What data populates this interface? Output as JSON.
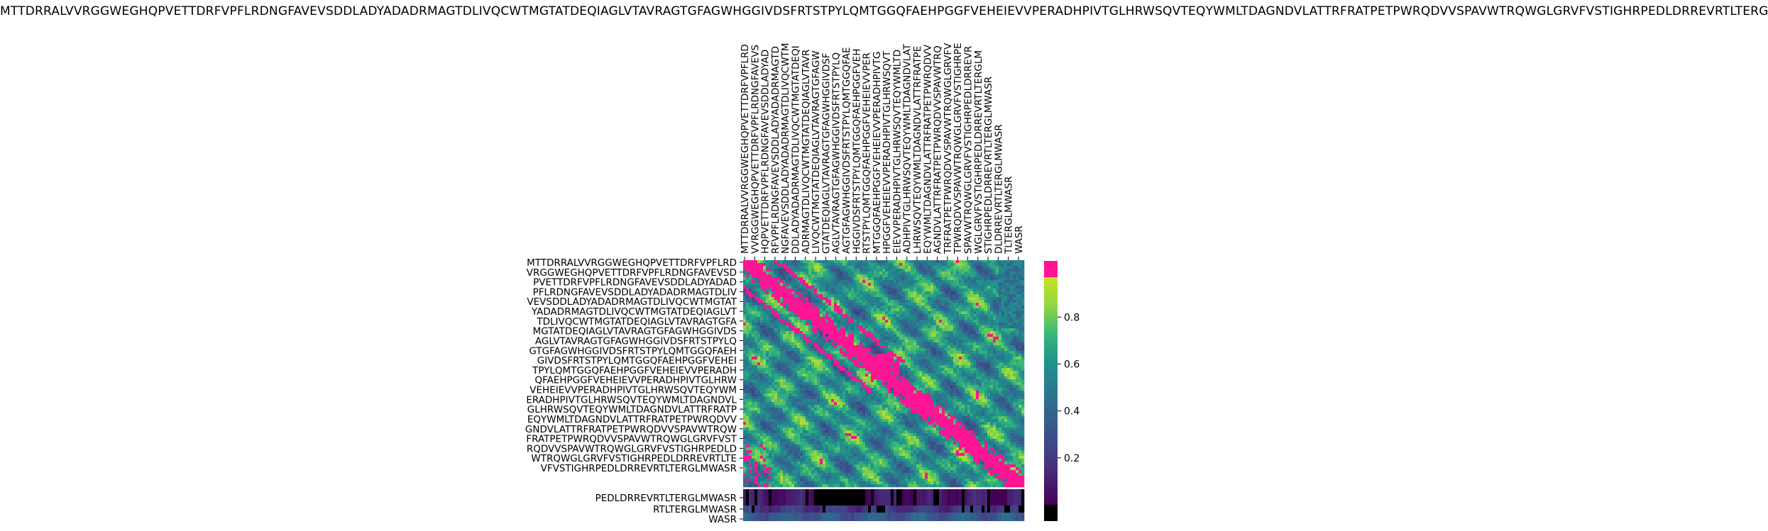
{
  "colors": {
    "self_match": "#ff1493",
    "below_range": "#000000",
    "viridis_low": "#440154",
    "viridis_mid": "#21918c",
    "viridis_high": "#c8e020"
  },
  "chart_data": {
    "type": "heatmap",
    "title": "MTTDRRALVVRGGWEGHQPVETTDRFVPFLRDNGFAVEVSDDLADYADADRMAGTDLIVQCWTMGTATDEQIAGLVTAVRAGTGFAGWHGGIVDSFRTSTPYLQMTGGQFAEHPGGFVEHEIEVVPERADHPIVTGLHRWSQVTEQYWMLTDAGNDVLATTRFRATPETPWRQDVVSPAVWTRQWGLGRVFVSTIGHRPEDLDRREVRTLTERGLMWASR",
    "xlabel": "",
    "ylabel": "",
    "x_tick_labels": [
      "MTTDRRALVVRGGWEGHQPVETTDRFVPFLRD",
      "VVRGGWEGHQPVETTDRFVPFLRDNGFAVEVS",
      "HQPVETTDRFVPFLRDNGFAVEVSDDLADYAD",
      "RFVPFLRDNGFAVEVSDDLADYADADRMAGTD",
      "NGFAVEVSDDLADYADADRMAGTDLIVQCWTM",
      "DDLADYADADRMAGTDLIVQCWTMGTATDEQI",
      "ADRMAGTDLIVQCWTMGTATDEQIAGLVTAVR",
      "LIVQCWTMGTATDEQIAGLVTAVRAGTGFAGW",
      "GTATDEQIAGLVTAVRAGTGFAGWHGGIVDSF",
      "AGLVTAVRAGTGFAGWHGGIVDSFRTSTPYLQ",
      "AGTGFAGWHGGIVDSFRTSTPYLQMTGGQFAE",
      "HGGIVDSFRTSTPYLQMTGGQFAEHPGGFVEH",
      "RTSTPYLQMTGGQFAEHPGGFVEHEIEVVPER",
      "MTGGQFAEHPGGFVEHEIEVVPERADHPIVTG",
      "HPGGFVEHEIEVVPERADHPIVTGLHRWSQVT",
      "EIEVVPERADHPIVTGLHRWSQVTEQYWMLTD",
      "ADHPIVTGLHRWSQVTEQYWMLTDAGNDVLAT",
      "LHRWSQVTEQYWMLTDAGNDVLATTRFRATPE",
      "EQYWMLTDAGNDVLATTRFRATPETPWRQDVV",
      "AGNDVLATTRFRATPETPWRQDVVSPAVWTRQ",
      "TRFRATPETPWRQDVVSPAVWTRQWGLGRVFV",
      "TPWRQDVVSPAVWTRQWGLGRVFVSTIGHRPE",
      "SPAVWTRQWGLGRVFVSTIGHRPEDLDRREVR",
      "WGLGRVFVSTIGHRPEDLDRREVRTLTERGLM",
      "STIGHRPEDLDRREVRTLTERGLMWASR",
      "DLDRREVRTLTERGLMWASR",
      "TLTERGLMWASR",
      "WASR"
    ],
    "y_tick_labels": [
      "MTTDRRALVVRGGWEGHQPVETTDRFVPFLRD",
      "VRGGWEGHQPVETTDRFVPFLRDNGFAVEVSD",
      "PVETTDRFVPFLRDNGFAVEVSDDLADYADAD",
      "PFLRDNGFAVEVSDDLADYADADRMAGTDLIV",
      "VEVSDDLADYADADRMAGTDLIVQCWTMGTAT",
      "YADADRMAGTDLIVQCWTMGTATDEQIAGLVT",
      "TDLIVQCWTMGTATDEQIAGLVTAVRAGTGFA",
      "MGTATDEQIAGLVTAVRAGTGFAGWHGGIVDS",
      "AGLVTAVRAGTGFAGWHGGIVDSFRTSTPYLQ",
      "GTGFAGWHGGIVDSFRTSTPYLQMTGGQFAEH",
      "GIVDSFRTSTPYLQMTGGQFAEHPGGFVEHEI",
      "TPYLQMTGGQFAEHPGGFVEHEIEVVPERADH",
      "QFAEHPGGFVEHEIEVVPERADHPIVTGLHRW",
      "VEHEIEVVPERADHPIVTGLHRWSQVTEQYWM",
      "ERADHPIVTGLHRWSQVTEQYWMLTDAGNDVL",
      "GLHRWSQVTEQYWMLTDAGNDVLATTRFRATP",
      "EQYWMLTDAGNDVLATTRFRATPETPWRQDVV",
      "GNDVLATTRFRATPETPWRQDVVSPAVWTRQW",
      "FRATPETPWRQDVVSPAVWTRQWGLGRVFVST",
      "RQDVVSPAVWTRQWGLGRVFVSTIGHRPEDLD",
      "WTRQWGLGRVFVSTIGHRPEDLDRREVRTLTE",
      "VFVSTIGHRPEDLDRREVRTLTERGLMWASR",
      "PEDLDRREVRTLTERGLMWASR",
      "RTLTERGLMWASR",
      "WASR"
    ],
    "colorbar": {
      "range": [
        0.0,
        0.97
      ],
      "ticks": [
        0.2,
        0.4,
        0.6,
        0.8
      ],
      "tick_labels": [
        "0.2",
        "0.4",
        "0.6",
        "0.8"
      ],
      "colormap": "viridis",
      "over_color": "#ff1493",
      "under_color": "#000000"
    },
    "heatmap": {
      "rows": 25,
      "cols": 28,
      "value_range": [
        0.0,
        1.0
      ],
      "diagonal_self_match": true,
      "bottom_rows_low_values": [
        22,
        23,
        24
      ]
    },
    "grid": false,
    "legend": "none"
  }
}
